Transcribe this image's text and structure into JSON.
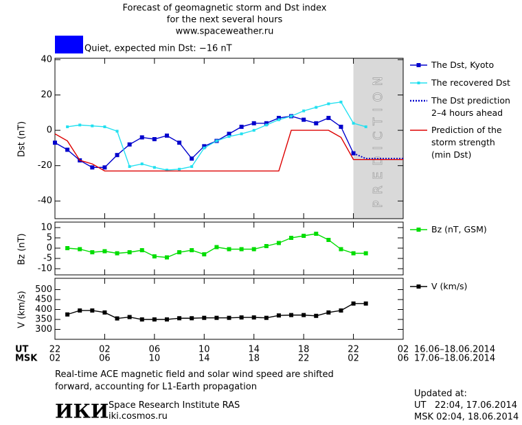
{
  "header": {
    "title_lines": [
      "Forecast of geomagnetic storm and Dst index",
      "for the next several hours",
      "www.spaceweather.ru"
    ]
  },
  "status": {
    "color": "#0000ff",
    "text": "Quiet, expected min Dst: −16 nT"
  },
  "chart_data": [
    {
      "type": "line",
      "ylabel": "Dst (nT)",
      "xlim": [
        0,
        28
      ],
      "ylim": [
        -50,
        40
      ],
      "yticks": [
        40,
        20,
        0,
        -20,
        -40
      ],
      "prediction": {
        "xlim": [
          24,
          28
        ],
        "label": "PREDICTION",
        "color": "#d9d9d9"
      },
      "series": [
        {
          "name": "The Dst, Kyoto",
          "color": "#0000cc",
          "marker": "square",
          "style": "solid",
          "x": [
            0,
            1,
            2,
            3,
            4,
            5,
            6,
            7,
            8,
            9,
            10,
            11,
            12,
            13,
            14,
            15,
            16,
            17,
            18,
            19,
            20,
            21,
            22,
            23,
            24
          ],
          "values": [
            -7,
            -11,
            -17,
            -21,
            -21,
            -14,
            -8,
            -4,
            -5,
            -3,
            -7,
            -16,
            -9,
            -6,
            -2,
            2,
            4,
            4,
            7,
            8,
            6,
            4,
            7,
            2,
            -13
          ]
        },
        {
          "name": "The recovered Dst",
          "color": "#22e0f0",
          "marker": "small-square",
          "style": "solid",
          "x": [
            1,
            2,
            3,
            4,
            5,
            6,
            7,
            8,
            9,
            10,
            11,
            12,
            13,
            14,
            15,
            16,
            17,
            18,
            19,
            20,
            21,
            22,
            23,
            24,
            25
          ],
          "values": [
            2,
            3,
            2.5,
            2,
            -0.5,
            -20.5,
            -19,
            -21,
            -22.5,
            -22,
            -20.5,
            -10,
            -6,
            -3.5,
            -2,
            0,
            3,
            6,
            8,
            11,
            13,
            15,
            16,
            4,
            2
          ]
        },
        {
          "name": "The Dst prediction\n2–4 hours ahead",
          "color": "#0000cc",
          "marker": "none",
          "style": "dotted",
          "x": [
            24,
            25,
            28
          ],
          "values": [
            -13,
            -16,
            -16
          ]
        },
        {
          "name": "Prediction of the\nstorm strength\n(min Dst)",
          "color": "#dd0000",
          "marker": "none",
          "style": "solid",
          "x": [
            0,
            1,
            2,
            3,
            4,
            18,
            19,
            22,
            23,
            24,
            28
          ],
          "values": [
            -2,
            -6,
            -17,
            -19,
            -23,
            -23,
            0,
            0,
            -4,
            -16.5,
            -16.5
          ]
        }
      ]
    },
    {
      "type": "line",
      "ylabel": "Bz (nT)",
      "xlim": [
        0,
        28
      ],
      "ylim": [
        -13,
        12
      ],
      "yticks": [
        10,
        5,
        0,
        -5,
        -10
      ],
      "series": [
        {
          "name": "Bz (nT, GSM)",
          "color": "#00dd00",
          "marker": "square",
          "style": "solid",
          "x": [
            1,
            2,
            3,
            4,
            5,
            6,
            7,
            8,
            9,
            10,
            11,
            12,
            13,
            14,
            15,
            16,
            17,
            18,
            19,
            20,
            21,
            22,
            23,
            24,
            25
          ],
          "values": [
            0,
            -0.5,
            -2,
            -1.5,
            -2.5,
            -2,
            -1,
            -4,
            -4.5,
            -2,
            -1,
            -3,
            0.5,
            -0.5,
            -0.5,
            -0.5,
            1,
            2.5,
            5,
            6,
            7,
            4,
            -0.5,
            -2.5,
            -2.5
          ]
        }
      ]
    },
    {
      "type": "line",
      "ylabel": "V (km/s)",
      "xlim": [
        0,
        28
      ],
      "ylim": [
        250,
        550
      ],
      "yticks": [
        500,
        450,
        400,
        350,
        300
      ],
      "xlabel": "UT",
      "xticks": [
        {
          "value": 0,
          "label": "22"
        },
        {
          "value": 4,
          "label": "02"
        },
        {
          "value": 8,
          "label": "06"
        },
        {
          "value": 12,
          "label": "10"
        },
        {
          "value": 16,
          "label": "14"
        },
        {
          "value": 20,
          "label": "18"
        },
        {
          "value": 24,
          "label": "22"
        },
        {
          "value": 28,
          "label": "02"
        }
      ],
      "x_range": "16.06–18.06.2014",
      "x2label": "MSK",
      "x2ticks": [
        {
          "value": 0,
          "label": "02"
        },
        {
          "value": 4,
          "label": "06"
        },
        {
          "value": 8,
          "label": "10"
        },
        {
          "value": 12,
          "label": "14"
        },
        {
          "value": 16,
          "label": "18"
        },
        {
          "value": 20,
          "label": "22"
        },
        {
          "value": 24,
          "label": "02"
        },
        {
          "value": 28,
          "label": "06"
        }
      ],
      "x2_range": "17.06–18.06.2014",
      "series": [
        {
          "name": "V (km/s)",
          "color": "#000000",
          "marker": "square",
          "style": "solid",
          "x": [
            1,
            2,
            3,
            4,
            5,
            6,
            7,
            8,
            9,
            10,
            11,
            12,
            13,
            14,
            15,
            16,
            17,
            18,
            19,
            20,
            21,
            22,
            23,
            24,
            25
          ],
          "values": [
            375,
            395,
            395,
            385,
            355,
            362,
            350,
            350,
            350,
            356,
            356,
            358,
            358,
            358,
            360,
            360,
            358,
            370,
            372,
            372,
            368,
            385,
            395,
            430,
            430
          ]
        }
      ]
    }
  ],
  "footer": {
    "note_lines": [
      "Real-time ACE magnetic field and solar wind speed are shifted",
      "forward, accounting for L1-Earth propagation"
    ],
    "logo": "ИКИ",
    "institute": "Space Research Institute RAS",
    "url": "iki.cosmos.ru",
    "updated_lines": [
      "Updated at:",
      "UT   22:04, 17.06.2014",
      "MSK 02:04, 18.06.2014"
    ]
  }
}
